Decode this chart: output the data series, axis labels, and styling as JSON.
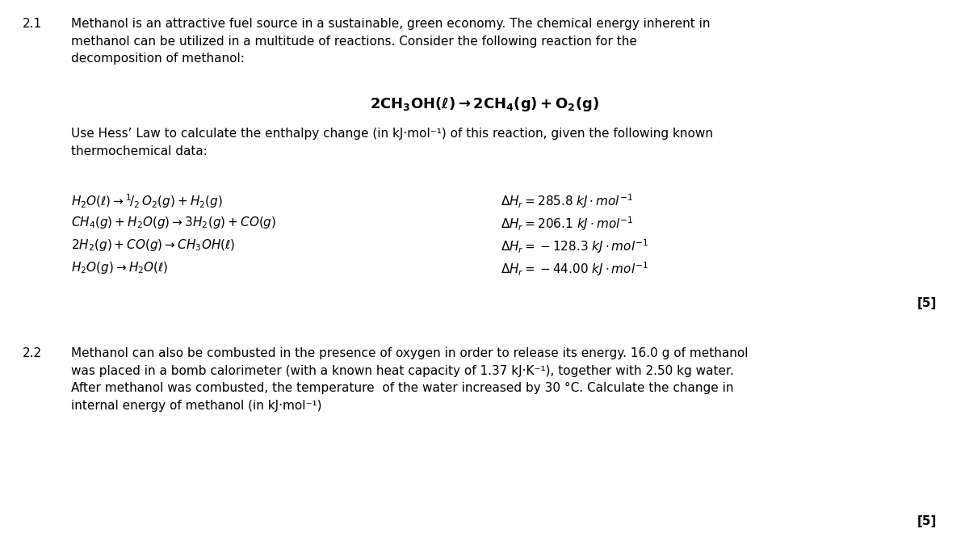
{
  "bg_color": "#ffffff",
  "text_color": "#000000",
  "fig_width": 12.0,
  "fig_height": 6.86,
  "section_21_number": "2.1",
  "section_21_intro": "Methanol is an attractive fuel source in a sustainable, green economy. The chemical energy inherent in\nmethanol can be utilized in a multitude of reactions. Consider the following reaction for the\ndecomposition of methanol:",
  "main_reaction": "$\\mathbf{2CH_3OH(\\ell) \\rightarrow 2CH_4(g) + O_2(g)}$",
  "hess_law_text": "Use Hess’ Law to calculate the enthalpy change (in kJ·mol⁻¹) of this reaction, given the following known\nthermochemical data:",
  "reactions": [
    "$H_2O(\\ell) \\rightarrow {^1\\!/}_2\\,O_2(g) + H_2(g)$",
    "$CH_4(g) + H_2O(g) \\rightarrow 3H_2(g) + CO(g)$",
    "$2H_2(g) + CO(g) \\rightarrow CH_3OH(\\ell)$",
    "$H_2O(g) \\rightarrow H_2O(\\ell)$"
  ],
  "enthalpies": [
    "$\\Delta H_r = 285.8\\ kJ \\cdot mol^{-1}$",
    "$\\Delta H_r = 206.1\\ kJ \\cdot mol^{-1}$",
    "$\\Delta H_r = -128.3\\ kJ \\cdot mol^{-1}$",
    "$\\Delta H_r = -44.00\\ kJ \\cdot mol^{-1}$"
  ],
  "marks_21": "[5]",
  "section_22_number": "2.2",
  "section_22_text": "Methanol can also be combusted in the presence of oxygen in order to release its energy. 16.0 g of methanol\nwas placed in a bomb calorimeter (with a known heat capacity of 1.37 kJ·K⁻¹), together with 2.50 kg water.\nAfter methanol was combusted, the temperature  of the water increased by 30 °C. Calculate the change in\ninternal energy of methanol (in kJ·mol⁻¹)",
  "marks_22": "[5]"
}
